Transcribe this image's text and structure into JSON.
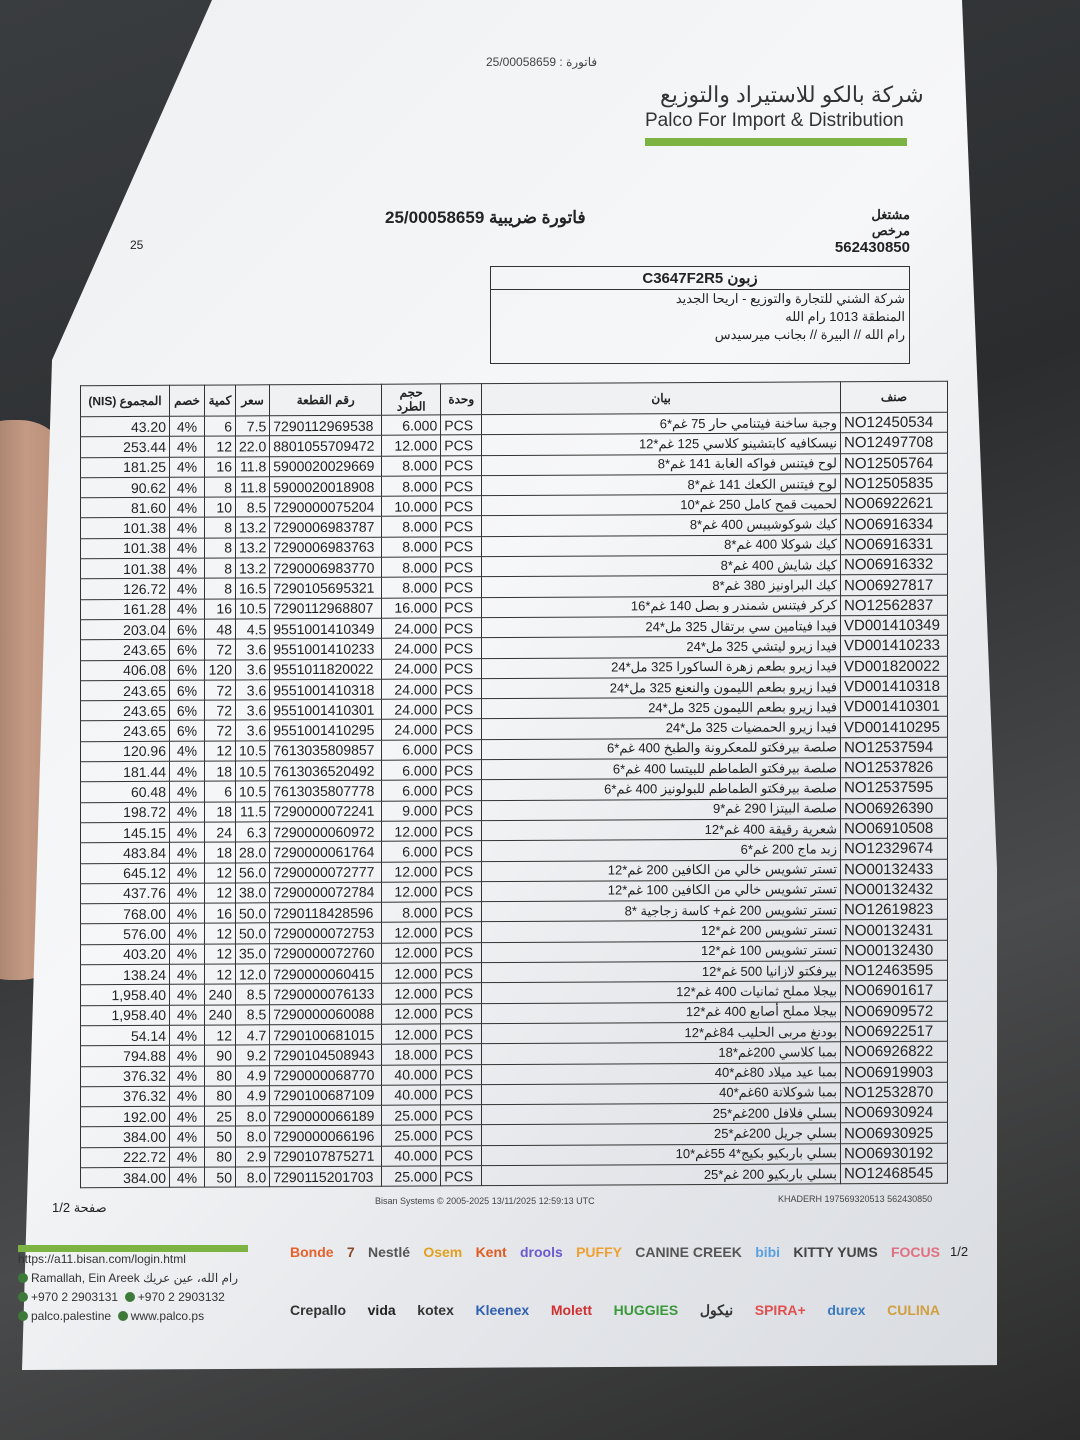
{
  "header": {
    "invoice_ref": "فاتورة : 25/00058659",
    "company_ar": "شركة بالكو للاستيراد والتوزيع",
    "company_en": "Palco For Import & Distribution",
    "tax_invoice": "فاتورة ضريبية 25/00058659",
    "licensed_label": "مشتغل مرخص",
    "licensed_no": "562430850",
    "edge_mark": "25"
  },
  "customer": {
    "title": "زبون C3647F2R5",
    "name": "شركة الشني للتجارة والتوزيع - اريحا الجديد",
    "area": "المنطقة 1013 رام الله",
    "address": "رام الله // البيرة // بجانب ميرسيدس"
  },
  "table": {
    "headers": {
      "code": "صنف",
      "desc": "بيان",
      "unit": "وحدة",
      "pack": "حجم الطرد",
      "barcode": "رقم القطعة",
      "price": "سعر",
      "qty": "كمية",
      "disc": "خصم",
      "total": "المجموع (NIS)"
    },
    "rows": [
      [
        "NO12450534",
        "وجبة ساخنة فيتنامي حار 75 غم*6",
        "PCS",
        "6.000",
        "7290112969538",
        "7.5",
        "6",
        "4%",
        "43.20"
      ],
      [
        "NO12497708",
        "نيسكافيه كابتشينو كلاسي 125 غم*12",
        "PCS",
        "12.000",
        "8801055709472",
        "22.0",
        "12",
        "4%",
        "253.44"
      ],
      [
        "NO12505764",
        "لوح فيتنس فواكه الغابة 141 غم*8",
        "PCS",
        "8.000",
        "5900020029669",
        "11.8",
        "16",
        "4%",
        "181.25"
      ],
      [
        "NO12505835",
        "لوح فيتنس الكعك 141 غم*8",
        "PCS",
        "8.000",
        "5900020018908",
        "11.8",
        "8",
        "4%",
        "90.62"
      ],
      [
        "NO06922621",
        "لحميت قمح كامل 250 غم*10",
        "PCS",
        "10.000",
        "7290000075204",
        "8.5",
        "10",
        "4%",
        "81.60"
      ],
      [
        "NO06916334",
        "كيك شوكوشيبس 400 غم*8",
        "PCS",
        "8.000",
        "7290006983787",
        "13.2",
        "8",
        "4%",
        "101.38"
      ],
      [
        "NO06916331",
        "كيك شوكلا 400 غم*8",
        "PCS",
        "8.000",
        "7290006983763",
        "13.2",
        "8",
        "4%",
        "101.38"
      ],
      [
        "NO06916332",
        "كيك شايش 400 غم*8",
        "PCS",
        "8.000",
        "7290006983770",
        "13.2",
        "8",
        "4%",
        "101.38"
      ],
      [
        "NO06927817",
        "كيك البراونيز 380 غم*8",
        "PCS",
        "8.000",
        "7290105695321",
        "16.5",
        "8",
        "4%",
        "126.72"
      ],
      [
        "NO12562837",
        "كركر فيتنس شمندر و بصل 140 غم*16",
        "PCS",
        "16.000",
        "7290112968807",
        "10.5",
        "16",
        "4%",
        "161.28"
      ],
      [
        "VD001410349",
        "فيدا فيتامين سي برتقال 325 مل*24",
        "PCS",
        "24.000",
        "9551001410349",
        "4.5",
        "48",
        "6%",
        "203.04"
      ],
      [
        "VD001410233",
        "فيدا زيرو ليتشي 325 مل*24",
        "PCS",
        "24.000",
        "9551001410233",
        "3.6",
        "72",
        "6%",
        "243.65"
      ],
      [
        "VD001820022",
        "فيدا زيرو بطعم زهرة الساكورا 325 مل*24",
        "PCS",
        "24.000",
        "9551011820022",
        "3.6",
        "120",
        "6%",
        "406.08"
      ],
      [
        "VD001410318",
        "فيدا زيرو بطعم الليمون والنعنع 325 مل*24",
        "PCS",
        "24.000",
        "9551001410318",
        "3.6",
        "72",
        "6%",
        "243.65"
      ],
      [
        "VD001410301",
        "فيدا زيرو بطعم الليمون 325 مل*24",
        "PCS",
        "24.000",
        "9551001410301",
        "3.6",
        "72",
        "6%",
        "243.65"
      ],
      [
        "VD001410295",
        "فيدا زيرو الحمضيات 325 مل*24",
        "PCS",
        "24.000",
        "9551001410295",
        "3.6",
        "72",
        "6%",
        "243.65"
      ],
      [
        "NO12537594",
        "صلصة بيرفكتو للمعكرونة والطبخ 400 غم*6",
        "PCS",
        "6.000",
        "7613035809857",
        "10.5",
        "12",
        "4%",
        "120.96"
      ],
      [
        "NO12537826",
        "صلصة بيرفكتو الطماطم للبيتسا 400 غم*6",
        "PCS",
        "6.000",
        "7613036520492",
        "10.5",
        "18",
        "4%",
        "181.44"
      ],
      [
        "NO12537595",
        "صلصة بيرفكتو الطماطم للبولونيز 400 غم*6",
        "PCS",
        "6.000",
        "7613035807778",
        "10.5",
        "6",
        "4%",
        "60.48"
      ],
      [
        "NO06926390",
        "صلصة البيتزا 290 غم*9",
        "PCS",
        "9.000",
        "7290000072241",
        "11.5",
        "18",
        "4%",
        "198.72"
      ],
      [
        "NO06910508",
        "شعرية رقيقة 400 غم*12",
        "PCS",
        "12.000",
        "7290000060972",
        "6.3",
        "24",
        "4%",
        "145.15"
      ],
      [
        "NO12329674",
        "زبد ماج 200 غم*6",
        "PCS",
        "6.000",
        "7290000061764",
        "28.0",
        "18",
        "4%",
        "483.84"
      ],
      [
        "NO00132433",
        "تستر تشويس خالي من الكافين 200 غم*12",
        "PCS",
        "12.000",
        "7290000072777",
        "56.0",
        "12",
        "4%",
        "645.12"
      ],
      [
        "NO00132432",
        "تستر تشويس خالي من الكافين 100 غم*12",
        "PCS",
        "12.000",
        "7290000072784",
        "38.0",
        "12",
        "4%",
        "437.76"
      ],
      [
        "NO12619823",
        "تستر تشويس 200 غم+ كاسة زجاجية *8",
        "PCS",
        "8.000",
        "7290118428596",
        "50.0",
        "16",
        "4%",
        "768.00"
      ],
      [
        "NO00132431",
        "تستر تشويس 200 غم*12",
        "PCS",
        "12.000",
        "7290000072753",
        "50.0",
        "12",
        "4%",
        "576.00"
      ],
      [
        "NO00132430",
        "تستر تشويس 100 غم*12",
        "PCS",
        "12.000",
        "7290000072760",
        "35.0",
        "12",
        "4%",
        "403.20"
      ],
      [
        "NO12463595",
        "بيرفكتو لازانيا 500 غم*12",
        "PCS",
        "12.000",
        "7290000060415",
        "12.0",
        "12",
        "4%",
        "138.24"
      ],
      [
        "NO06901617",
        "بيجلا مملح ثمانيات 400 غم*12",
        "PCS",
        "12.000",
        "7290000076133",
        "8.5",
        "240",
        "4%",
        "1,958.40"
      ],
      [
        "NO06909572",
        "بيجلا مملح أصابع 400 غم*12",
        "PCS",
        "12.000",
        "7290000060088",
        "8.5",
        "240",
        "4%",
        "1,958.40"
      ],
      [
        "NO06922517",
        "بودنغ مربى الحليب 84غم*12",
        "PCS",
        "12.000",
        "7290100681015",
        "4.7",
        "12",
        "4%",
        "54.14"
      ],
      [
        "NO06926822",
        "بمبا كلاسي 200غم*18",
        "PCS",
        "18.000",
        "7290104508943",
        "9.2",
        "90",
        "4%",
        "794.88"
      ],
      [
        "NO06919903",
        "بمبا عيد ميلاد 80غم*40",
        "PCS",
        "40.000",
        "7290000068770",
        "4.9",
        "80",
        "4%",
        "376.32"
      ],
      [
        "NO12532870",
        "بمبا شوكلاتة 60غم*40",
        "PCS",
        "40.000",
        "7290100687109",
        "4.9",
        "80",
        "4%",
        "376.32"
      ],
      [
        "NO06930924",
        "بسلي فلافل 200غم*25",
        "PCS",
        "25.000",
        "7290000066189",
        "8.0",
        "25",
        "4%",
        "192.00"
      ],
      [
        "NO06930925",
        "بسلي جريل 200غم*25",
        "PCS",
        "25.000",
        "7290000066196",
        "8.0",
        "50",
        "4%",
        "384.00"
      ],
      [
        "NO06930192",
        "بسلي باربكيو بكيج*4 55غم*10",
        "PCS",
        "40.000",
        "7290107875271",
        "2.9",
        "80",
        "4%",
        "222.72"
      ],
      [
        "NO12468545",
        "بسلي باربكيو 200 غم*25",
        "PCS",
        "25.000",
        "7290115201703",
        "8.0",
        "50",
        "4%",
        "384.00"
      ]
    ]
  },
  "footer": {
    "page": "صفحة 1/2",
    "system": "Bisan Systems © 2005-2025 13/11/2025 12:59:13 UTC",
    "user_code": "KHADERH 197569320513 562430850",
    "login_url": "https://a11.bisan.com/login.html",
    "location": "Ramallah, Ein Areek رام الله، عين عريك",
    "phone1": "+970 2 2903131",
    "phone2": "+970 2 2903132",
    "social": "palco.palestine",
    "website": "www.palco.ps",
    "brand_page": "1/2",
    "brands_row1": [
      {
        "name": "Bonde",
        "color": "#e8612c"
      },
      {
        "name": "7",
        "color": "#8a4a2a"
      },
      {
        "name": "Nestlé",
        "color": "#555"
      },
      {
        "name": "Osem",
        "color": "#e0a020"
      },
      {
        "name": "Kent",
        "color": "#e05a20"
      },
      {
        "name": "drools",
        "color": "#6a5acd"
      },
      {
        "name": "PUFFY",
        "color": "#f0a030"
      },
      {
        "name": "CANINE CREEK",
        "color": "#555"
      },
      {
        "name": "bibi",
        "color": "#5aa0e0"
      },
      {
        "name": "KITTY YUMS",
        "color": "#444"
      },
      {
        "name": "FOCUS",
        "color": "#e07080"
      }
    ],
    "brands_row2": [
      {
        "name": "Crepallo",
        "color": "#333"
      },
      {
        "name": "vida",
        "color": "#222"
      },
      {
        "name": "kotex",
        "color": "#333"
      },
      {
        "name": "Kleenex",
        "color": "#3060b0"
      },
      {
        "name": "Molett",
        "color": "#d03030"
      },
      {
        "name": "HUGGIES",
        "color": "#3a9a3a"
      },
      {
        "name": "نيكول",
        "color": "#333"
      },
      {
        "name": "SPIRA+",
        "color": "#e05050"
      },
      {
        "name": "durex",
        "color": "#3a7ac0"
      },
      {
        "name": "CULINA",
        "color": "#d0a040"
      }
    ]
  }
}
